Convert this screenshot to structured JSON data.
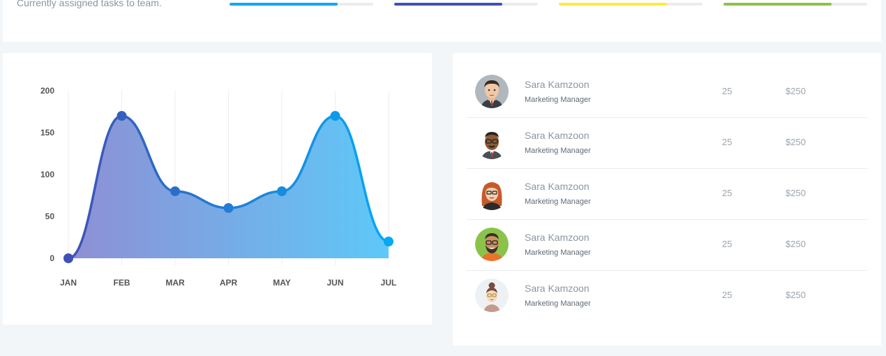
{
  "header": {
    "subtitle": "Currently assigned tasks to team.",
    "progress_bars": [
      {
        "value": 0.75,
        "color": "#03a9f4"
      },
      {
        "value": 0.75,
        "color": "#3f51b5"
      },
      {
        "value": 0.75,
        "color": "#ffeb3b"
      },
      {
        "value": 0.75,
        "color": "#8bc34a"
      }
    ]
  },
  "chart_data": {
    "type": "area",
    "categories": [
      "JAN",
      "FEB",
      "MAR",
      "APR",
      "MAY",
      "JUN",
      "JUL"
    ],
    "series": [
      {
        "values": [
          0,
          170,
          80,
          60,
          80,
          170,
          20
        ]
      }
    ],
    "y_ticks": [
      "0",
      "50",
      "100",
      "150",
      "200"
    ],
    "ylim": [
      0,
      200
    ],
    "grid": "vertical",
    "colors": {
      "start": "#3f51b5",
      "end": "#03a9f4",
      "fill_start": "#8e8fd4",
      "fill_end": "#5ec8f8"
    }
  },
  "team": {
    "members": [
      {
        "name": "Sara Kamzoon",
        "role": "Marketing Manager",
        "count": "25",
        "amount": "$250",
        "avatar": "man-suit-avatar"
      },
      {
        "name": "Sara Kamzoon",
        "role": "Marketing Manager",
        "count": "25",
        "amount": "$250",
        "avatar": "man-glasses-avatar"
      },
      {
        "name": "Sara Kamzoon",
        "role": "Marketing Manager",
        "count": "25",
        "amount": "$250",
        "avatar": "woman-redhair-avatar"
      },
      {
        "name": "Sara Kamzoon",
        "role": "Marketing Manager",
        "count": "25",
        "amount": "$250",
        "avatar": "man-beard-avatar"
      },
      {
        "name": "Sara Kamzoon",
        "role": "Marketing Manager",
        "count": "25",
        "amount": "$250",
        "avatar": "woman-bun-avatar"
      }
    ]
  }
}
